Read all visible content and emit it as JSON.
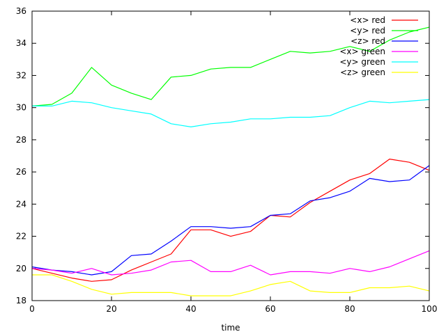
{
  "chart_data": {
    "type": "line",
    "title": "",
    "xlabel": "time",
    "ylabel": "",
    "xlim": [
      0,
      100
    ],
    "ylim": [
      18,
      36
    ],
    "x_ticks": [
      0,
      20,
      40,
      60,
      80,
      100
    ],
    "y_ticks": [
      18,
      20,
      22,
      24,
      26,
      28,
      30,
      32,
      34,
      36
    ],
    "legend_position": "top-right",
    "grid": false,
    "x": [
      0,
      5,
      10,
      15,
      20,
      25,
      30,
      35,
      40,
      45,
      50,
      55,
      60,
      65,
      70,
      75,
      80,
      85,
      90,
      95,
      100
    ],
    "series": [
      {
        "name": "<x> red",
        "color": "#ff0000",
        "values": [
          20.0,
          19.7,
          19.4,
          19.2,
          19.3,
          19.9,
          20.4,
          20.9,
          22.4,
          22.4,
          22.0,
          22.3,
          23.3,
          23.2,
          24.1,
          24.8,
          25.5,
          25.9,
          26.8,
          26.6,
          26.1
        ]
      },
      {
        "name": "<y> red",
        "color": "#00ff00",
        "values": [
          30.1,
          30.2,
          30.9,
          32.5,
          31.4,
          30.9,
          30.5,
          31.9,
          32.0,
          32.4,
          32.5,
          32.5,
          33.0,
          33.5,
          33.4,
          33.5,
          33.8,
          33.5,
          34.2,
          34.7,
          35.0
        ]
      },
      {
        "name": "<z> red",
        "color": "#0000ff",
        "values": [
          20.1,
          19.9,
          19.8,
          19.6,
          19.8,
          20.8,
          20.9,
          21.7,
          22.6,
          22.6,
          22.5,
          22.6,
          23.3,
          23.4,
          24.2,
          24.4,
          24.8,
          25.6,
          25.4,
          25.5,
          26.4
        ]
      },
      {
        "name": "<x> green",
        "color": "#ff00ff",
        "values": [
          20.0,
          19.9,
          19.7,
          20.0,
          19.6,
          19.7,
          19.9,
          20.4,
          20.5,
          19.8,
          19.8,
          20.2,
          19.6,
          19.8,
          19.8,
          19.7,
          20.0,
          19.8,
          20.1,
          20.6,
          21.1
        ]
      },
      {
        "name": "<y> green",
        "color": "#00ffff",
        "values": [
          30.1,
          30.1,
          30.4,
          30.3,
          30.0,
          29.8,
          29.6,
          29.0,
          28.8,
          29.0,
          29.1,
          29.3,
          29.3,
          29.4,
          29.4,
          29.5,
          30.0,
          30.4,
          30.3,
          30.4,
          30.5
        ]
      },
      {
        "name": "<z> green",
        "color": "#ffff00",
        "values": [
          19.6,
          19.6,
          19.2,
          18.7,
          18.4,
          18.5,
          18.5,
          18.5,
          18.3,
          18.3,
          18.3,
          18.6,
          19.0,
          19.2,
          18.6,
          18.5,
          18.5,
          18.8,
          18.8,
          18.9,
          18.6
        ]
      }
    ]
  }
}
